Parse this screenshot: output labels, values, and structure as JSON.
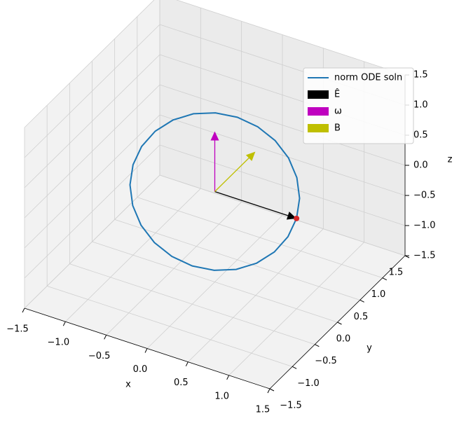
{
  "chart_data": {
    "type": "line3d",
    "xlabel": "x",
    "ylabel": "y",
    "zlabel": "z",
    "xlim": [
      -1.5,
      1.5
    ],
    "ylim": [
      -1.5,
      1.5
    ],
    "zlim": [
      -1.5,
      1.5
    ],
    "xticks": [
      {
        "value": -1.5,
        "label": "−1.5"
      },
      {
        "value": -1,
        "label": "−1.0"
      },
      {
        "value": -0.5,
        "label": "−0.5"
      },
      {
        "value": 0,
        "label": "0.0"
      },
      0.5,
      {
        "value": 1,
        "label": "1.0"
      },
      1.5
    ],
    "yticks": [
      {
        "value": -1.5,
        "label": "−1.5"
      },
      {
        "value": -1,
        "label": "−1.0"
      },
      {
        "value": -0.5,
        "label": "−0.5"
      },
      {
        "value": 0,
        "label": "0.0"
      },
      0.5,
      {
        "value": 1,
        "label": "1.0"
      },
      1.5
    ],
    "zticks": [
      {
        "value": -1.5,
        "label": "−1.5"
      },
      {
        "value": -1,
        "label": "−1.0"
      },
      {
        "value": -0.5,
        "label": "−0.5"
      },
      {
        "value": 0,
        "label": "0.0"
      },
      0.5,
      {
        "value": 1,
        "label": "1.0"
      },
      1.5
    ],
    "grid": true,
    "legend": "upper right",
    "series": [
      {
        "name": "norm ODE soln",
        "color": "#1f77b4",
        "x": [
          1,
          0.966,
          0.866,
          0.707,
          0.5,
          0.259,
          0,
          -0.259,
          -0.5,
          -0.707,
          -0.866,
          -0.966,
          -1,
          -0.966,
          -0.866,
          -0.707,
          -0.5,
          -0.259,
          0,
          0.259,
          0.5,
          0.707,
          0.866,
          0.966,
          1
        ],
        "y": [
          0,
          0.129,
          0.25,
          0.354,
          0.433,
          0.483,
          0.5,
          0.483,
          0.433,
          0.354,
          0.25,
          0.129,
          0,
          -0.129,
          -0.25,
          -0.354,
          -0.433,
          -0.483,
          -0.5,
          -0.483,
          -0.433,
          -0.354,
          -0.25,
          -0.129,
          0
        ],
        "z": [
          0,
          0.224,
          0.433,
          0.612,
          0.75,
          0.836,
          0.866,
          0.836,
          0.75,
          0.612,
          0.433,
          0.224,
          0,
          -0.224,
          -0.433,
          -0.612,
          -0.75,
          -0.836,
          -0.866,
          -0.836,
          -0.75,
          -0.612,
          -0.433,
          -0.224,
          0
        ]
      }
    ],
    "vectors": [
      {
        "name": "Ê",
        "color": "#000000",
        "x": [
          0,
          1
        ],
        "y": [
          0,
          0
        ],
        "z": [
          0,
          0
        ]
      },
      {
        "name": "ω",
        "color": "#bf00bf",
        "x": [
          0,
          0
        ],
        "y": [
          0,
          0
        ],
        "z": [
          0,
          1
        ]
      },
      {
        "name": "B",
        "color": "#bfbf00",
        "x": [
          0,
          0
        ],
        "y": [
          0,
          0.9
        ],
        "z": [
          0,
          0
        ]
      }
    ],
    "points": {
      "color": "#d62728",
      "x": [
        1
      ],
      "y": [
        0
      ],
      "z": [
        0
      ]
    }
  }
}
